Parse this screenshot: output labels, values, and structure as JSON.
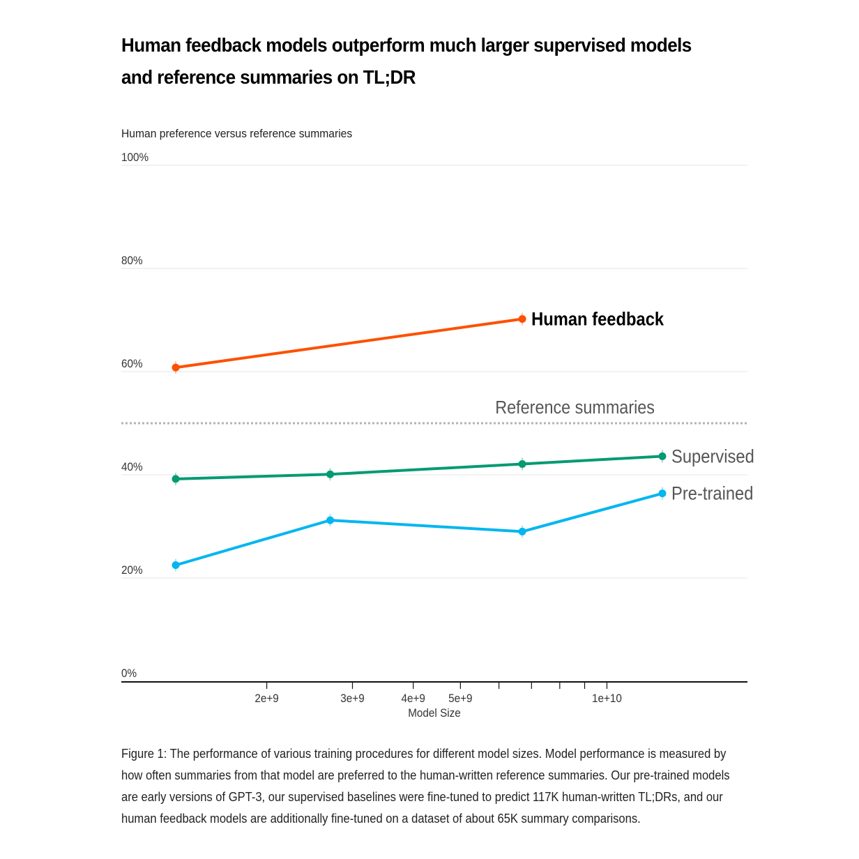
{
  "title": "Human feedback models outperform much larger supervised models and reference summaries on TL;DR",
  "caption": "Figure 1: The performance of various training procedures for different model sizes. Model performance is measured by how often summaries from that model are preferred to the human-written reference summaries. Our pre-trained models are early versions of GPT-3, our supervised baselines were fine-tuned to predict 117K human-written TL;DRs, and our human feedback models are additionally fine-tuned on a dataset of about 65K summary comparisons.",
  "chart_data": {
    "type": "line",
    "title": "Human feedback models outperform much larger supervised models and reference summaries on TL;DR",
    "ylabel": "Human preference versus reference summaries",
    "xlabel": "Model Size",
    "x_scale": "log",
    "xlim": [
      1300000000.0,
      17000000000.0
    ],
    "ylim": [
      0,
      100
    ],
    "y_ticks": [
      0,
      20,
      40,
      60,
      80,
      100
    ],
    "y_tick_labels": [
      "0%",
      "20%",
      "40%",
      "60%",
      "80%",
      "100%"
    ],
    "x_tick_labels": [
      {
        "value": 2000000000.0,
        "label": "2e+9"
      },
      {
        "value": 3000000000.0,
        "label": "3e+9"
      },
      {
        "value": 4000000000.0,
        "label": "4e+9"
      },
      {
        "value": 5000000000.0,
        "label": "5e+9"
      },
      {
        "value": 6000000000.0,
        "label": ""
      },
      {
        "value": 7000000000.0,
        "label": ""
      },
      {
        "value": 8000000000.0,
        "label": ""
      },
      {
        "value": 9000000000.0,
        "label": ""
      },
      {
        "value": 10000000000.0,
        "label": "1e+10"
      }
    ],
    "grid": true,
    "reference": {
      "name": "Reference summaries",
      "value": 50
    },
    "series": [
      {
        "name": "Human feedback",
        "color": "#fe5000",
        "x": [
          1300000000.0,
          6700000000.0
        ],
        "values": [
          60.8,
          70.2
        ]
      },
      {
        "name": "Supervised",
        "color": "#049a73",
        "x": [
          1300000000.0,
          2700000000.0,
          6700000000.0,
          13000000000.0
        ],
        "values": [
          39.2,
          40.1,
          42.1,
          43.6
        ]
      },
      {
        "name": "Pre-trained",
        "color": "#03b6f0",
        "x": [
          1300000000.0,
          2700000000.0,
          6700000000.0,
          13000000000.0
        ],
        "values": [
          22.5,
          31.2,
          29.0,
          36.4
        ]
      }
    ]
  }
}
